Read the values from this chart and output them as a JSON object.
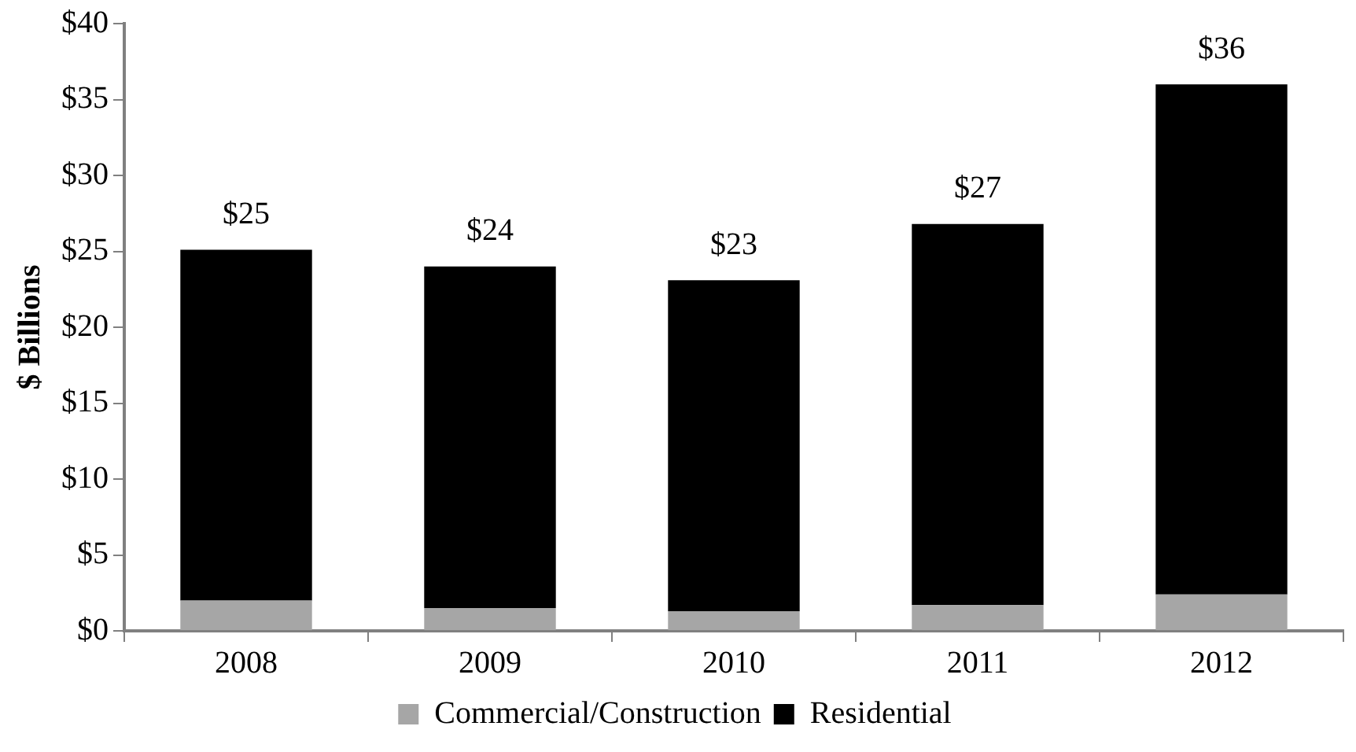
{
  "chart_data": {
    "type": "bar",
    "stacked": true,
    "ylabel": "$ Billions",
    "categories": [
      "2008",
      "2009",
      "2010",
      "2011",
      "2012"
    ],
    "series": [
      {
        "name": "Commercial/Construction",
        "color": "#a6a6a6",
        "values": [
          2.0,
          1.5,
          1.3,
          1.7,
          2.4
        ]
      },
      {
        "name": "Residential",
        "color": "#000000",
        "values": [
          23.1,
          22.5,
          21.8,
          25.1,
          33.6
        ]
      }
    ],
    "totals": [
      "$25",
      "$24",
      "$23",
      "$27",
      "$36"
    ],
    "ylim": [
      0,
      40
    ],
    "yticks": [
      {
        "value": 0,
        "label": "$0"
      },
      {
        "value": 5,
        "label": "$5"
      },
      {
        "value": 10,
        "label": "$10"
      },
      {
        "value": 15,
        "label": "$15"
      },
      {
        "value": 20,
        "label": "$20"
      },
      {
        "value": 25,
        "label": "$25"
      },
      {
        "value": 30,
        "label": "$30"
      },
      {
        "value": 35,
        "label": "$35"
      },
      {
        "value": 40,
        "label": "$40"
      }
    ],
    "grid": false,
    "legend": "bottom"
  }
}
